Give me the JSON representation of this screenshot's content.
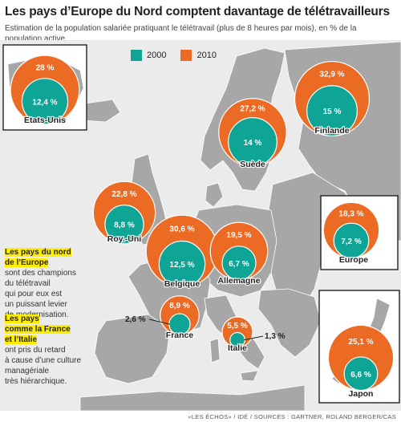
{
  "title": "Les pays d’Europe du Nord comptent davantage de télétravailleurs",
  "subtitle": "Estimation de la population salariée pratiquant le télétravail (plus de 8 heures par mois), en % de la population active",
  "legend": [
    {
      "label": "2000",
      "color": "#0ea597"
    },
    {
      "label": "2010",
      "color": "#ec6b24"
    }
  ],
  "source": "«LES ÉCHOS» / IDÉ / SOURCES : GARTNER, ROLAND BERGER/CAS",
  "notes": {
    "north_highlight_1": "Les pays du nord",
    "north_highlight_2": "de l’Europe",
    "north_body": [
      "sont des champions",
      "du télétravail",
      "qui pour eux est",
      "un puissant levier",
      "de modernisation."
    ],
    "south_highlight_1": "Les pays",
    "south_highlight_2": "comme la France",
    "south_highlight_3": "et l’Italie",
    "south_body": [
      "ont pris du retard",
      "à cause d’une culture",
      "managériale",
      "très hiérarchique."
    ]
  },
  "chart_data": {
    "type": "bubble-map",
    "title": "Les pays d’Europe du Nord comptent davantage de télétravailleurs",
    "unit": "%",
    "series": [
      {
        "name": "2000",
        "color": "#0ea597"
      },
      {
        "name": "2010",
        "color": "#ec6b24"
      }
    ],
    "countries": [
      {
        "name": "Etats-Unis",
        "v2000": 12.4,
        "v2010": 28,
        "l2000": "12,4 %",
        "l2010": "28 %"
      },
      {
        "name": "Finlande",
        "v2000": 15,
        "v2010": 32.9,
        "l2000": "15 %",
        "l2010": "32,9 %"
      },
      {
        "name": "Suède",
        "v2000": 14,
        "v2010": 27.2,
        "l2000": "14 %",
        "l2010": "27,2 %"
      },
      {
        "name": "Roy.-Uni",
        "v2000": 8.8,
        "v2010": 22.8,
        "l2000": "8,8 %",
        "l2010": "22,8 %"
      },
      {
        "name": "Belgique",
        "v2000": 12.5,
        "v2010": 30.6,
        "l2000": "12,5 %",
        "l2010": "30,6 %"
      },
      {
        "name": "Allemagne",
        "v2000": 6.7,
        "v2010": 19.5,
        "l2000": "6,7 %",
        "l2010": "19,5 %"
      },
      {
        "name": "France",
        "v2000": 2.6,
        "v2010": 8.9,
        "l2000": "2,6 %",
        "l2010": "8,9 %"
      },
      {
        "name": "Italie",
        "v2000": 1.3,
        "v2010": 5.5,
        "l2000": "1,3 %",
        "l2010": "5,5 %"
      },
      {
        "name": "Europe",
        "v2000": 7.2,
        "v2010": 18.3,
        "l2000": "7,2 %",
        "l2010": "18,3 %"
      },
      {
        "name": "Japon",
        "v2000": 6.6,
        "v2010": 25.1,
        "l2000": "6,6 %",
        "l2010": "25,1 %"
      }
    ]
  }
}
